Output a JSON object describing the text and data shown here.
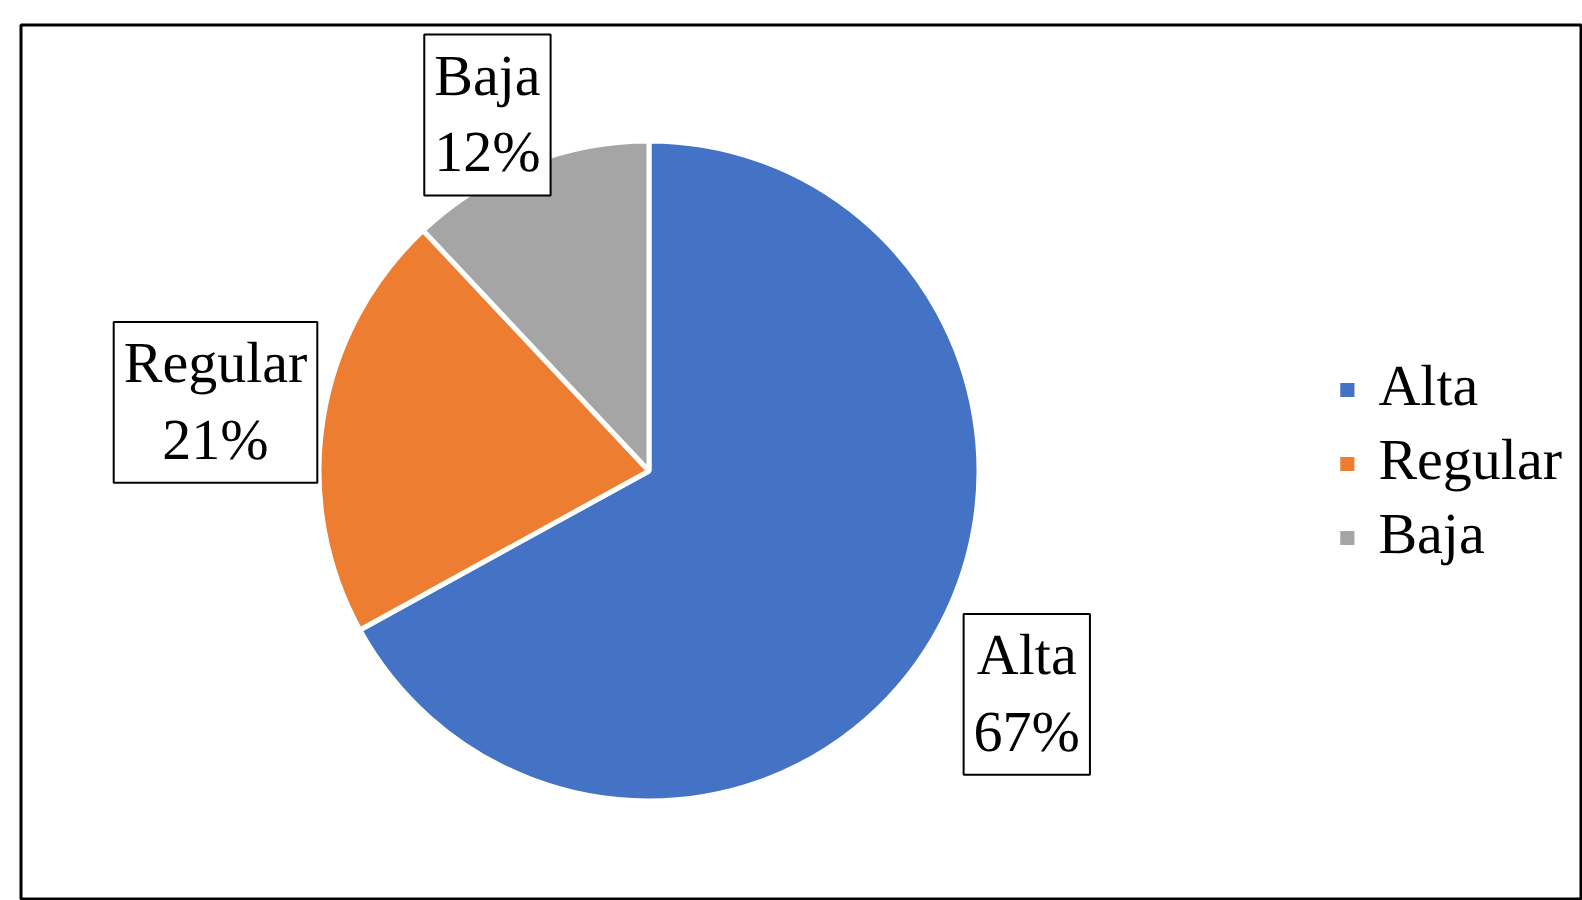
{
  "chart_data": {
    "type": "pie",
    "categories": [
      "Alta",
      "Regular",
      "Baja"
    ],
    "values": [
      67,
      21,
      12
    ],
    "colors": [
      "#4472c4",
      "#ed7d31",
      "#a5a5a5"
    ],
    "value_labels": [
      "67%",
      "21%",
      "12%"
    ],
    "legend": "right"
  }
}
